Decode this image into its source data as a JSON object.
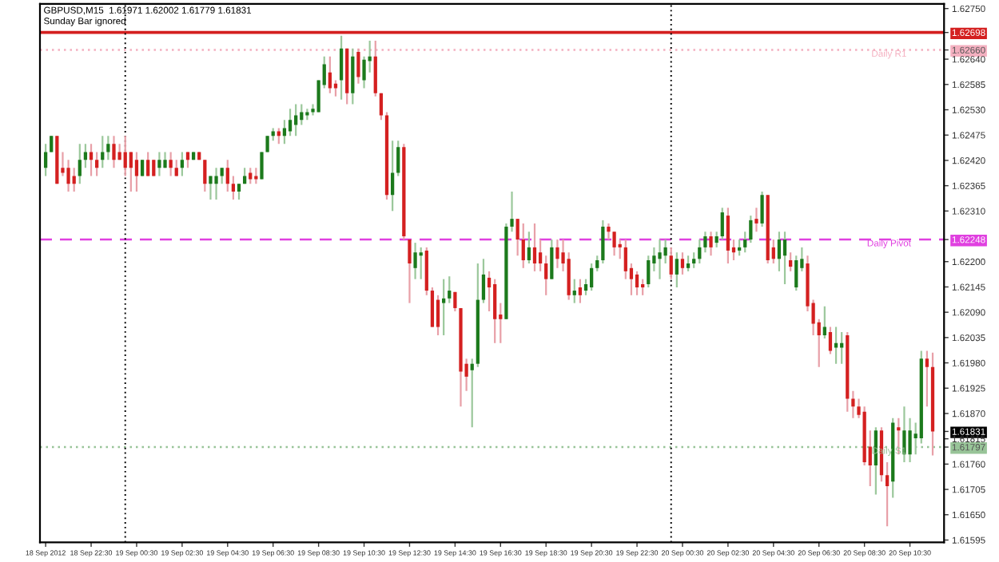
{
  "chart_data": {
    "type": "candlestick",
    "title": "GBPUSD,M15  1.61971 1.62002 1.61779 1.61831",
    "subtitle": "Sunday Bar ignored",
    "x": [
      "2012-09-18T20:30",
      "2012-09-18T20:45",
      "2012-09-18T21:00",
      "2012-09-18T21:15",
      "2012-09-18T21:30",
      "2012-09-18T21:45",
      "2012-09-18T22:00",
      "2012-09-18T22:15",
      "2012-09-18T22:30",
      "2012-09-18T22:45",
      "2012-09-18T23:00",
      "2012-09-18T23:15",
      "2012-09-18T23:30",
      "2012-09-18T23:45",
      "2012-09-19T00:00",
      "2012-09-19T00:15",
      "2012-09-19T00:30",
      "2012-09-19T00:45",
      "2012-09-19T01:00",
      "2012-09-19T01:15",
      "2012-09-19T01:30",
      "2012-09-19T01:45",
      "2012-09-19T02:00",
      "2012-09-19T02:15",
      "2012-09-19T02:30",
      "2012-09-19T02:45",
      "2012-09-19T03:00",
      "2012-09-19T03:15",
      "2012-09-19T03:30",
      "2012-09-19T03:45",
      "2012-09-19T04:00",
      "2012-09-19T04:15",
      "2012-09-19T04:30",
      "2012-09-19T04:45",
      "2012-09-19T05:00",
      "2012-09-19T05:15",
      "2012-09-19T05:30",
      "2012-09-19T05:45",
      "2012-09-19T06:00",
      "2012-09-19T06:15",
      "2012-09-19T06:30",
      "2012-09-19T06:45",
      "2012-09-19T07:00",
      "2012-09-19T07:15",
      "2012-09-19T07:30",
      "2012-09-19T07:45",
      "2012-09-19T08:00",
      "2012-09-19T08:15",
      "2012-09-19T08:30",
      "2012-09-19T08:45",
      "2012-09-19T09:00",
      "2012-09-19T09:15",
      "2012-09-19T09:30",
      "2012-09-19T09:45",
      "2012-09-19T10:00",
      "2012-09-19T10:15",
      "2012-09-19T10:30",
      "2012-09-19T10:45",
      "2012-09-19T11:00",
      "2012-09-19T11:15",
      "2012-09-19T11:30",
      "2012-09-19T11:45",
      "2012-09-19T12:00",
      "2012-09-19T12:15",
      "2012-09-19T12:30",
      "2012-09-19T12:45",
      "2012-09-19T13:00",
      "2012-09-19T13:15",
      "2012-09-19T13:30",
      "2012-09-19T13:45",
      "2012-09-19T14:00",
      "2012-09-19T14:15",
      "2012-09-19T14:30",
      "2012-09-19T14:45",
      "2012-09-19T15:00",
      "2012-09-19T15:15",
      "2012-09-19T15:30",
      "2012-09-19T15:45",
      "2012-09-19T16:00",
      "2012-09-19T16:15",
      "2012-09-19T16:30",
      "2012-09-19T16:45",
      "2012-09-19T17:00",
      "2012-09-19T17:15",
      "2012-09-19T17:30",
      "2012-09-19T17:45",
      "2012-09-19T18:00",
      "2012-09-19T18:15",
      "2012-09-19T18:30",
      "2012-09-19T18:45",
      "2012-09-19T19:00",
      "2012-09-19T19:15",
      "2012-09-19T19:30",
      "2012-09-19T19:45",
      "2012-09-19T20:00",
      "2012-09-19T20:15",
      "2012-09-19T20:30",
      "2012-09-19T20:45",
      "2012-09-19T21:00",
      "2012-09-19T21:15",
      "2012-09-19T21:30",
      "2012-09-19T21:45",
      "2012-09-19T22:00",
      "2012-09-19T22:15",
      "2012-09-19T22:30",
      "2012-09-19T22:45",
      "2012-09-19T23:00",
      "2012-09-19T23:15",
      "2012-09-19T23:30",
      "2012-09-19T23:45",
      "2012-09-20T00:00",
      "2012-09-20T00:15",
      "2012-09-20T00:30",
      "2012-09-20T00:45",
      "2012-09-20T01:00",
      "2012-09-20T01:15",
      "2012-09-20T01:30",
      "2012-09-20T01:45",
      "2012-09-20T02:00",
      "2012-09-20T02:15",
      "2012-09-20T02:30",
      "2012-09-20T02:45",
      "2012-09-20T03:00",
      "2012-09-20T03:15",
      "2012-09-20T03:30",
      "2012-09-20T03:45",
      "2012-09-20T04:00",
      "2012-09-20T04:15",
      "2012-09-20T04:30",
      "2012-09-20T04:45",
      "2012-09-20T05:00",
      "2012-09-20T05:15",
      "2012-09-20T05:30",
      "2012-09-20T05:45",
      "2012-09-20T06:00",
      "2012-09-20T06:15",
      "2012-09-20T06:30",
      "2012-09-20T06:45",
      "2012-09-20T07:00",
      "2012-09-20T07:15",
      "2012-09-20T07:30",
      "2012-09-20T07:45",
      "2012-09-20T08:00",
      "2012-09-20T08:15",
      "2012-09-20T08:30",
      "2012-09-20T08:45",
      "2012-09-20T09:00",
      "2012-09-20T09:15",
      "2012-09-20T09:30",
      "2012-09-20T09:45",
      "2012-09-20T10:00",
      "2012-09-20T10:15",
      "2012-09-20T10:30",
      "2012-09-20T10:45",
      "2012-09-20T11:00",
      "2012-09-20T11:15",
      "2012-09-20T11:30"
    ],
    "ohlc": [
      [
        1.62404,
        1.62456,
        1.62386,
        1.62438
      ],
      [
        1.62438,
        1.62473,
        1.62438,
        1.62473
      ],
      [
        1.62473,
        1.62473,
        1.62369,
        1.62369
      ],
      [
        1.62404,
        1.62438,
        1.62386,
        1.62393
      ],
      [
        1.62404,
        1.62421,
        1.62352,
        1.62369
      ],
      [
        1.62386,
        1.62404,
        1.62352,
        1.62369
      ],
      [
        1.62386,
        1.62456,
        1.62369,
        1.62421
      ],
      [
        1.62421,
        1.62456,
        1.62404,
        1.62438
      ],
      [
        1.62438,
        1.62456,
        1.62386,
        1.62421
      ],
      [
        1.62421,
        1.62438,
        1.62386,
        1.62404
      ],
      [
        1.62421,
        1.62473,
        1.62404,
        1.62438
      ],
      [
        1.62438,
        1.62473,
        1.62421,
        1.62456
      ],
      [
        1.62456,
        1.62473,
        1.62404,
        1.62421
      ],
      [
        1.62438,
        1.62456,
        1.62421,
        1.62421
      ],
      [
        1.62438,
        1.62473,
        1.62386,
        1.62404
      ],
      [
        1.62438,
        1.62438,
        1.62352,
        1.62404
      ],
      [
        1.62421,
        1.62438,
        1.62352,
        1.62386
      ],
      [
        1.62386,
        1.62421,
        1.62386,
        1.62421
      ],
      [
        1.62421,
        1.62438,
        1.62386,
        1.62386
      ],
      [
        1.62421,
        1.62421,
        1.62386,
        1.62386
      ],
      [
        1.62404,
        1.62438,
        1.62386,
        1.62421
      ],
      [
        1.62404,
        1.62438,
        1.62404,
        1.62421
      ],
      [
        1.62421,
        1.62438,
        1.62386,
        1.62404
      ],
      [
        1.62404,
        1.62421,
        1.62386,
        1.62386
      ],
      [
        1.62404,
        1.62438,
        1.62386,
        1.62421
      ],
      [
        1.62438,
        1.62438,
        1.62404,
        1.62421
      ],
      [
        1.62421,
        1.62438,
        1.62421,
        1.62438
      ],
      [
        1.62438,
        1.62438,
        1.62421,
        1.62421
      ],
      [
        1.62421,
        1.62421,
        1.62352,
        1.62369
      ],
      [
        1.62369,
        1.62386,
        1.62335,
        1.62386
      ],
      [
        1.62369,
        1.62404,
        1.62335,
        1.62386
      ],
      [
        1.62386,
        1.62404,
        1.62369,
        1.62404
      ],
      [
        1.62404,
        1.62421,
        1.62352,
        1.62369
      ],
      [
        1.62369,
        1.62386,
        1.62335,
        1.62352
      ],
      [
        1.62352,
        1.62369,
        1.62335,
        1.62369
      ],
      [
        1.62369,
        1.62404,
        1.62369,
        1.62386
      ],
      [
        1.62393,
        1.62404,
        1.62369,
        1.62379
      ],
      [
        1.62386,
        1.62404,
        1.62369,
        1.62379
      ],
      [
        1.62379,
        1.62438,
        1.62379,
        1.62438
      ],
      [
        1.62438,
        1.62473,
        1.62438,
        1.62473
      ],
      [
        1.62473,
        1.6249,
        1.62463,
        1.62483
      ],
      [
        1.62483,
        1.6249,
        1.62456,
        1.62473
      ],
      [
        1.62473,
        1.62508,
        1.62456,
        1.6249
      ],
      [
        1.62483,
        1.62532,
        1.62473,
        1.62508
      ],
      [
        1.62497,
        1.62542,
        1.62473,
        1.62518
      ],
      [
        1.62508,
        1.62542,
        1.62497,
        1.62525
      ],
      [
        1.62518,
        1.62532,
        1.62508,
        1.62525
      ],
      [
        1.62525,
        1.62542,
        1.62518,
        1.62532
      ],
      [
        1.62525,
        1.62594,
        1.62525,
        1.62594
      ],
      [
        1.62584,
        1.62646,
        1.62577,
        1.62629
      ],
      [
        1.62611,
        1.62646,
        1.62566,
        1.62577
      ],
      [
        1.62587,
        1.62594,
        1.62559,
        1.62577
      ],
      [
        1.62594,
        1.62691,
        1.62552,
        1.62663
      ],
      [
        1.62663,
        1.62663,
        1.62542,
        1.62566
      ],
      [
        1.62566,
        1.62663,
        1.62542,
        1.62646
      ],
      [
        1.62656,
        1.62663,
        1.62587,
        1.62601
      ],
      [
        1.62594,
        1.62646,
        1.62577,
        1.62639
      ],
      [
        1.62636,
        1.6268,
        1.62611,
        1.62646
      ],
      [
        1.62646,
        1.6268,
        1.62559,
        1.62566
      ],
      [
        1.62566,
        1.62566,
        1.62508,
        1.62518
      ],
      [
        1.62518,
        1.62525,
        1.62335,
        1.62345
      ],
      [
        1.62345,
        1.62463,
        1.6231,
        1.62393
      ],
      [
        1.62393,
        1.62463,
        1.62386,
        1.62449
      ],
      [
        1.62449,
        1.62456,
        1.62248,
        1.62255
      ],
      [
        1.62248,
        1.62248,
        1.6211,
        1.62196
      ],
      [
        1.62186,
        1.62241,
        1.62162,
        1.6222
      ],
      [
        1.62213,
        1.62231,
        1.62162,
        1.6222
      ],
      [
        1.62224,
        1.62231,
        1.62127,
        1.62137
      ],
      [
        1.62137,
        1.62144,
        1.62058,
        1.62058
      ],
      [
        1.62117,
        1.62127,
        1.6204,
        1.62058
      ],
      [
        1.6211,
        1.62162,
        1.6204,
        1.6212
      ],
      [
        1.6212,
        1.62168,
        1.6211,
        1.62137
      ],
      [
        1.62134,
        1.62134,
        1.62092,
        1.62099
      ],
      [
        1.62099,
        1.62099,
        1.61885,
        1.61961
      ],
      [
        1.61978,
        1.61989,
        1.61919,
        1.6195
      ],
      [
        1.61964,
        1.61989,
        1.6184,
        1.61978
      ],
      [
        1.61978,
        1.62196,
        1.61971,
        1.62117
      ],
      [
        1.62117,
        1.62206,
        1.6211,
        1.62172
      ],
      [
        1.62165,
        1.62179,
        1.62092,
        1.62144
      ],
      [
        1.62151,
        1.62162,
        1.62023,
        1.62075
      ],
      [
        1.62085,
        1.6211,
        1.62023,
        1.62075
      ],
      [
        1.62075,
        1.62283,
        1.62075,
        1.62276
      ],
      [
        1.62276,
        1.62352,
        1.62265,
        1.62293
      ],
      [
        1.62293,
        1.62293,
        1.62213,
        1.62248
      ],
      [
        1.62248,
        1.62283,
        1.62186,
        1.62203
      ],
      [
        1.62203,
        1.62265,
        1.62196,
        1.62231
      ],
      [
        1.62231,
        1.62283,
        1.62179,
        1.62196
      ],
      [
        1.6222,
        1.62248,
        1.62179,
        1.62196
      ],
      [
        1.62196,
        1.62213,
        1.62127,
        1.62162
      ],
      [
        1.62162,
        1.62248,
        1.62162,
        1.62231
      ],
      [
        1.62231,
        1.62248,
        1.62186,
        1.62206
      ],
      [
        1.6222,
        1.62248,
        1.62179,
        1.62196
      ],
      [
        1.62206,
        1.6222,
        1.62117,
        1.62127
      ],
      [
        1.62127,
        1.62162,
        1.6211,
        1.62137
      ],
      [
        1.62144,
        1.62162,
        1.6211,
        1.62127
      ],
      [
        1.62137,
        1.62162,
        1.62127,
        1.62151
      ],
      [
        1.62144,
        1.62196,
        1.62137,
        1.62186
      ],
      [
        1.62186,
        1.62213,
        1.62179,
        1.62203
      ],
      [
        1.62203,
        1.6229,
        1.62196,
        1.62276
      ],
      [
        1.62276,
        1.62283,
        1.62248,
        1.62265
      ],
      [
        1.62265,
        1.62265,
        1.62213,
        1.62231
      ],
      [
        1.62238,
        1.62248,
        1.62206,
        1.62231
      ],
      [
        1.62231,
        1.62248,
        1.62162,
        1.62179
      ],
      [
        1.62186,
        1.62196,
        1.62127,
        1.62162
      ],
      [
        1.62172,
        1.62179,
        1.62127,
        1.62144
      ],
      [
        1.62151,
        1.62162,
        1.62127,
        1.62144
      ],
      [
        1.62151,
        1.62213,
        1.62144,
        1.62203
      ],
      [
        1.62196,
        1.62231,
        1.62179,
        1.62213
      ],
      [
        1.62206,
        1.62248,
        1.62162,
        1.6222
      ],
      [
        1.62213,
        1.62248,
        1.62196,
        1.62231
      ],
      [
        1.62213,
        1.62231,
        1.62162,
        1.62172
      ],
      [
        1.62172,
        1.6222,
        1.62144,
        1.62206
      ],
      [
        1.62206,
        1.6222,
        1.62172,
        1.62186
      ],
      [
        1.62186,
        1.62213,
        1.62179,
        1.62196
      ],
      [
        1.62196,
        1.6222,
        1.62186,
        1.62206
      ],
      [
        1.62206,
        1.62248,
        1.62196,
        1.62231
      ],
      [
        1.62231,
        1.62265,
        1.6222,
        1.62255
      ],
      [
        1.62255,
        1.62265,
        1.62213,
        1.62231
      ],
      [
        1.62241,
        1.62265,
        1.62231,
        1.62255
      ],
      [
        1.62255,
        1.62317,
        1.62248,
        1.62307
      ],
      [
        1.623,
        1.62317,
        1.62196,
        1.62224
      ],
      [
        1.62231,
        1.62248,
        1.62203,
        1.6222
      ],
      [
        1.62224,
        1.62248,
        1.62213,
        1.62231
      ],
      [
        1.62231,
        1.62265,
        1.6222,
        1.62248
      ],
      [
        1.62248,
        1.623,
        1.62241,
        1.6229
      ],
      [
        1.62293,
        1.62317,
        1.62265,
        1.62283
      ],
      [
        1.62283,
        1.62352,
        1.62276,
        1.62345
      ],
      [
        1.62345,
        1.62345,
        1.62196,
        1.62203
      ],
      [
        1.62231,
        1.62248,
        1.62196,
        1.62206
      ],
      [
        1.62206,
        1.62265,
        1.62179,
        1.62248
      ],
      [
        1.62213,
        1.62265,
        1.62151,
        1.62248
      ],
      [
        1.62203,
        1.6222,
        1.62179,
        1.62189
      ],
      [
        1.62144,
        1.62213,
        1.62137,
        1.62203
      ],
      [
        1.62186,
        1.62231,
        1.62179,
        1.62206
      ],
      [
        1.62196,
        1.62213,
        1.62092,
        1.62103
      ],
      [
        1.6211,
        1.62117,
        1.6204,
        1.62065
      ],
      [
        1.62068,
        1.62075,
        1.61971,
        1.6204
      ],
      [
        1.6204,
        1.62103,
        1.62033,
        1.62058
      ],
      [
        1.62047,
        1.62058,
        1.61999,
        1.62006
      ],
      [
        1.62013,
        1.62058,
        1.61978,
        1.62023
      ],
      [
        1.62013,
        1.62047,
        1.61978,
        1.62023
      ],
      [
        1.6204,
        1.62047,
        1.61874,
        1.61902
      ],
      [
        1.61902,
        1.61919,
        1.6186,
        1.61885
      ],
      [
        1.61885,
        1.61902,
        1.6186,
        1.61867
      ],
      [
        1.61874,
        1.61885,
        1.61757,
        1.61764
      ],
      [
        1.61798,
        1.61833,
        1.61712,
        1.61757
      ],
      [
        1.61757,
        1.6184,
        1.61694,
        1.61833
      ],
      [
        1.61833,
        1.6184,
        1.61722,
        1.61736
      ],
      [
        1.61736,
        1.61764,
        1.61625,
        1.61712
      ],
      [
        1.61722,
        1.6186,
        1.61687,
        1.6185
      ],
      [
        1.6184,
        1.6186,
        1.61781,
        1.61833
      ],
      [
        1.61781,
        1.61885,
        1.61764,
        1.61833
      ],
      [
        1.61781,
        1.6186,
        1.61764,
        1.61833
      ],
      [
        1.61816,
        1.6185,
        1.61781,
        1.61826
      ],
      [
        1.61816,
        1.62006,
        1.61805,
        1.61989
      ],
      [
        1.61989,
        1.62006,
        1.61885,
        1.61971
      ],
      [
        1.61971,
        1.62002,
        1.61779,
        1.61831
      ]
    ],
    "ylim": [
      1.6159,
      1.6276
    ],
    "yticks": [
      {
        "value": 1.6275,
        "label": "1.62750"
      },
      {
        "value": 1.62698,
        "label": "1.62698"
      },
      {
        "value": 1.6266,
        "label": "1.62660"
      },
      {
        "value": 1.62248,
        "label": "1.62248"
      },
      {
        "value": 1.61831,
        "label": "1.61831"
      },
      {
        "value": 1.61797,
        "label": "1.61797"
      },
      {
        "value": 1.6264,
        "label": "1.62640"
      },
      {
        "value": 1.62585,
        "label": "1.62585"
      },
      {
        "value": 1.6253,
        "label": "1.62530"
      },
      {
        "value": 1.62475,
        "label": "1.62475"
      },
      {
        "value": 1.6242,
        "label": "1.62420"
      },
      {
        "value": 1.62365,
        "label": "1.62365"
      },
      {
        "value": 1.6231,
        "label": "1.62310"
      },
      {
        "value": 1.622,
        "label": "1.62200"
      },
      {
        "value": 1.62145,
        "label": "1.62145"
      },
      {
        "value": 1.6209,
        "label": "1.62090"
      },
      {
        "value": 1.62035,
        "label": "1.62035"
      },
      {
        "value": 1.6198,
        "label": "1.61980"
      },
      {
        "value": 1.61925,
        "label": "1.61925"
      },
      {
        "value": 1.6187,
        "label": "1.61870"
      },
      {
        "value": 1.61815,
        "label": "1.61815"
      },
      {
        "value": 1.6176,
        "label": "1.61760"
      },
      {
        "value": 1.61705,
        "label": "1.61705"
      },
      {
        "value": 1.6165,
        "label": "1.61650"
      },
      {
        "value": 1.61595,
        "label": "1.61595"
      }
    ],
    "xlim": [
      "2012-09-18T20:15",
      "2012-09-20T12:00"
    ],
    "xticks": [
      {
        "value": "2012-09-18T20:30",
        "label": "18 Sep 2012"
      },
      {
        "value": "2012-09-18T22:30",
        "label": "18 Sep 22:30"
      },
      {
        "value": "2012-09-19T00:30",
        "label": "19 Sep 00:30"
      },
      {
        "value": "2012-09-19T02:30",
        "label": "19 Sep 02:30"
      },
      {
        "value": "2012-09-19T04:30",
        "label": "19 Sep 04:30"
      },
      {
        "value": "2012-09-19T06:30",
        "label": "19 Sep 06:30"
      },
      {
        "value": "2012-09-19T08:30",
        "label": "19 Sep 08:30"
      },
      {
        "value": "2012-09-19T10:30",
        "label": "19 Sep 10:30"
      },
      {
        "value": "2012-09-19T12:30",
        "label": "19 Sep 12:30"
      },
      {
        "value": "2012-09-19T14:30",
        "label": "19 Sep 14:30"
      },
      {
        "value": "2012-09-19T16:30",
        "label": "19 Sep 16:30"
      },
      {
        "value": "2012-09-19T18:30",
        "label": "19 Sep 18:30"
      },
      {
        "value": "2012-09-19T20:30",
        "label": "19 Sep 20:30"
      },
      {
        "value": "2012-09-19T22:30",
        "label": "19 Sep 22:30"
      },
      {
        "value": "2012-09-20T00:30",
        "label": "20 Sep 00:30"
      },
      {
        "value": "2012-09-20T02:30",
        "label": "20 Sep 02:30"
      },
      {
        "value": "2012-09-20T04:30",
        "label": "20 Sep 04:30"
      },
      {
        "value": "2012-09-20T06:30",
        "label": "20 Sep 06:30"
      },
      {
        "value": "2012-09-20T08:30",
        "label": "20 Sep 08:30"
      },
      {
        "value": "2012-09-20T10:30",
        "label": "20 Sep 10:30"
      }
    ],
    "ref_lines": [
      {
        "axis": "y",
        "value": 1.62698,
        "label": null,
        "color": "#d42020",
        "line_style": "solid"
      },
      {
        "axis": "y",
        "value": 1.6266,
        "label": "Daily R1",
        "color": "#f4b0c0",
        "line_style": "dotted"
      },
      {
        "axis": "y",
        "value": 1.62248,
        "label": "Daily Pivot",
        "color": "#e040e0",
        "line_style": "dashed"
      },
      {
        "axis": "y",
        "value": 1.61797,
        "label": "Daily S1",
        "color": "#98c498",
        "line_style": "dotted"
      },
      {
        "axis": "x",
        "value": "2012-09-19T00:00",
        "label": null,
        "color": "#000000",
        "line_style": "dotted"
      },
      {
        "axis": "x",
        "value": "2012-09-20T00:00",
        "label": null,
        "color": "#000000",
        "line_style": "dotted"
      }
    ],
    "grid": false,
    "legend": false
  }
}
